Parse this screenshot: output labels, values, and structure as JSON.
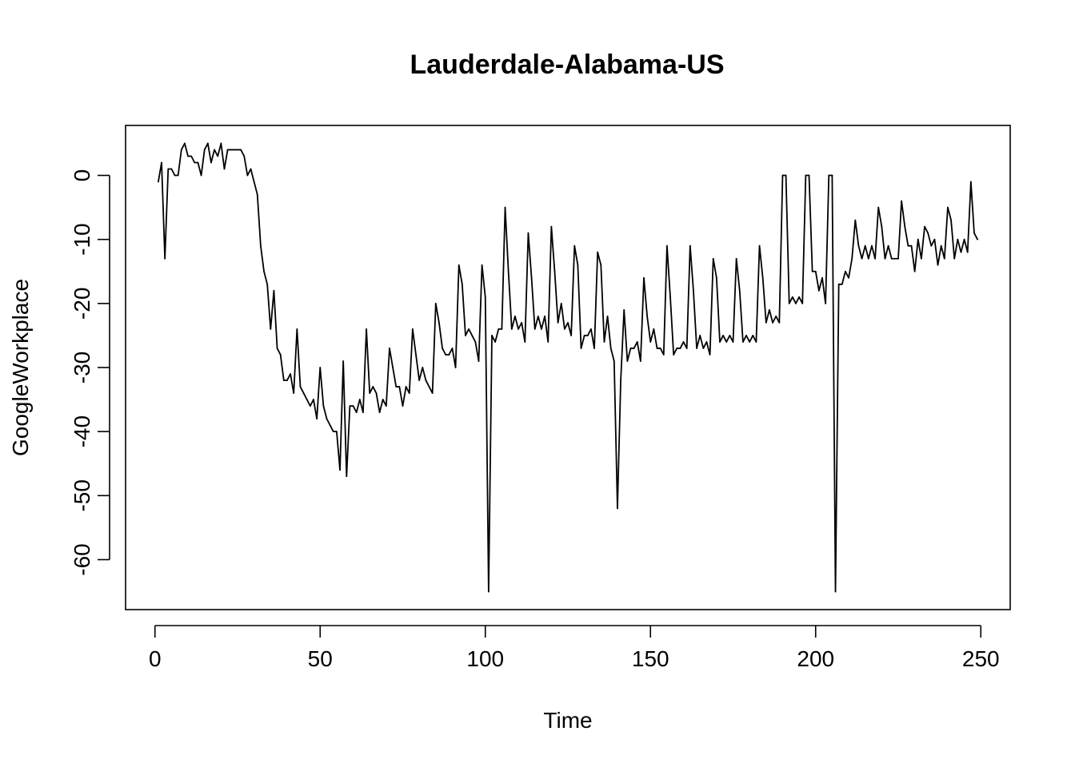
{
  "chart_data": {
    "type": "line",
    "title": "Lauderdale-Alabama-US",
    "xlabel": "Time",
    "ylabel": "GoogleWorkplace",
    "xlim": [
      -8.9,
      258.9
    ],
    "ylim": [
      -67.8,
      7.8
    ],
    "xticks": [
      0,
      50,
      100,
      150,
      200,
      250
    ],
    "yticks": [
      0,
      -10,
      -20,
      -30,
      -40,
      -50,
      -60
    ],
    "grid": false,
    "legend": "none",
    "line_color": "#000000",
    "series": [
      {
        "x_start": 1,
        "values": [
          -1,
          2,
          -13,
          1,
          1,
          0,
          0,
          4,
          5,
          3,
          3,
          2,
          2,
          0,
          4,
          5,
          2,
          4,
          3,
          5,
          1,
          4,
          4,
          4,
          4,
          4,
          3,
          0,
          1,
          -1,
          -3,
          -11,
          -15,
          -17,
          -24,
          -18,
          -27,
          -28,
          -32,
          -32,
          -31,
          -34,
          -24,
          -33,
          -34,
          -35,
          -36,
          -35,
          -38,
          -30,
          -36,
          -38,
          -39,
          -40,
          -40,
          -46,
          -29,
          -47,
          -36,
          -36,
          -37,
          -35,
          -37,
          -24,
          -34,
          -33,
          -34,
          -37,
          -35,
          -36,
          -27,
          -30,
          -33,
          -33,
          -36,
          -33,
          -34,
          -24,
          -28,
          -32,
          -30,
          -32,
          -33,
          -34,
          -20,
          -23,
          -27,
          -28,
          -28,
          -27,
          -30,
          -14,
          -17,
          -25,
          -24,
          -25,
          -26,
          -29,
          -14,
          -19,
          -65,
          -25,
          -26,
          -24,
          -24,
          -5,
          -15,
          -24,
          -22,
          -24,
          -23,
          -26,
          -9,
          -16,
          -24,
          -22,
          -24,
          -22,
          -26,
          -8,
          -15,
          -23,
          -20,
          -24,
          -23,
          -25,
          -11,
          -14,
          -27,
          -25,
          -25,
          -24,
          -27,
          -12,
          -14,
          -26,
          -22,
          -27,
          -29,
          -52,
          -32,
          -21,
          -29,
          -27,
          -27,
          -26,
          -29,
          -16,
          -22,
          -26,
          -24,
          -27,
          -27,
          -28,
          -11,
          -19,
          -28,
          -27,
          -27,
          -26,
          -27,
          -11,
          -18,
          -27,
          -25,
          -27,
          -26,
          -28,
          -13,
          -16,
          -26,
          -25,
          -26,
          -25,
          -26,
          -13,
          -18,
          -26,
          -25,
          -26,
          -25,
          -26,
          -11,
          -16,
          -23,
          -21,
          -23,
          -22,
          -23,
          0,
          0,
          -20,
          -19,
          -20,
          -19,
          -20,
          0,
          0,
          -15,
          -15,
          -18,
          -16,
          -20,
          0,
          0,
          -65,
          -17,
          -17,
          -15,
          -16,
          -13,
          -7,
          -11,
          -13,
          -11,
          -13,
          -11,
          -13,
          -5,
          -8,
          -13,
          -11,
          -13,
          -13,
          -13,
          -4,
          -8,
          -11,
          -11,
          -15,
          -10,
          -13,
          -8,
          -9,
          -11,
          -10,
          -14,
          -11,
          -13,
          -5,
          -7,
          -13,
          -10,
          -12,
          -10,
          -12,
          -1,
          -9,
          -10
        ]
      }
    ]
  }
}
